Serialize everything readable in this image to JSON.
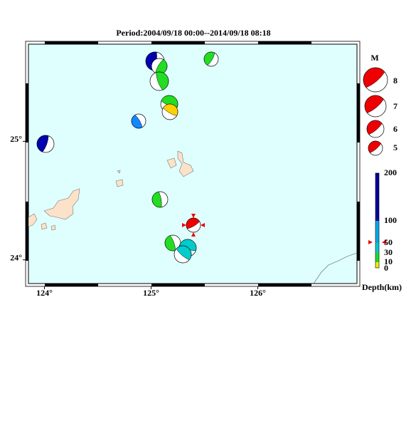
{
  "title": "Period:2004/09/18 00:00--2014/09/18 08:18",
  "map": {
    "lonlim": [
      123.85,
      126.93
    ],
    "latlim": [
      23.8,
      25.82
    ],
    "xticks": [
      {
        "value": 124,
        "label": "124°"
      },
      {
        "value": 125,
        "label": "125°"
      },
      {
        "value": 126,
        "label": "126°"
      }
    ],
    "yticks": [
      {
        "value": 24,
        "label": "24°"
      },
      {
        "value": 25,
        "label": "25°"
      }
    ]
  },
  "magnitude_legend": {
    "title": "M",
    "items": [
      "8",
      "7",
      "6",
      "5"
    ]
  },
  "depth_legend": {
    "labels": [
      "200",
      "100",
      "50",
      "30",
      "10",
      "0"
    ],
    "title": "Depth(km)"
  }
}
